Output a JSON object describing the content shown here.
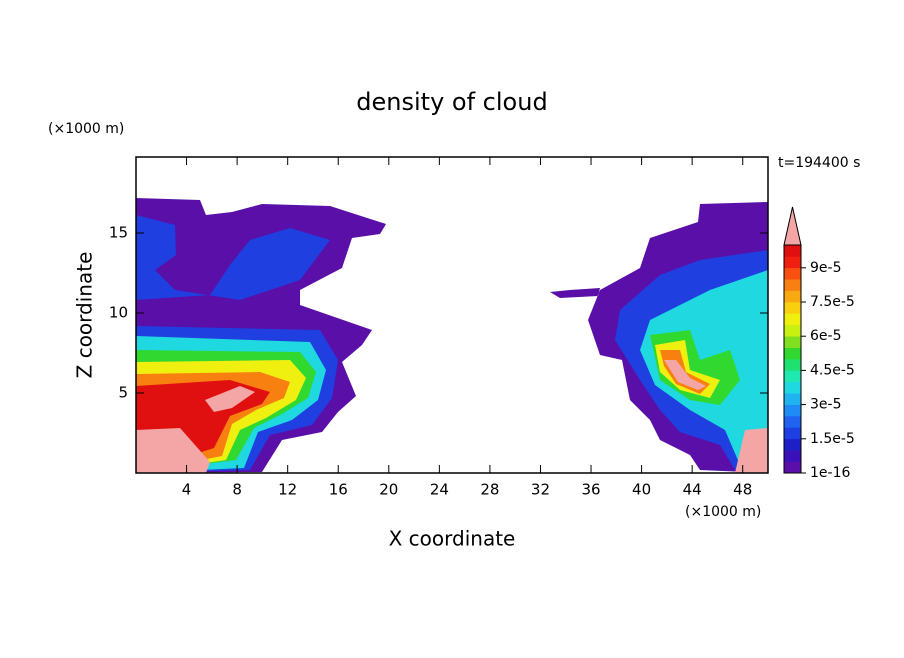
{
  "chart_data": {
    "type": "contour",
    "title": "density of cloud",
    "x_label": "X coordinate",
    "y_label": "Z coordinate",
    "x_unit": "(×1000 m)",
    "y_unit": "(×1000 m)",
    "annotation": "t=194400 s",
    "xlim": [
      0,
      50
    ],
    "ylim": [
      0,
      19.75
    ],
    "xticks": [
      4,
      8,
      12,
      16,
      20,
      24,
      28,
      32,
      36,
      40,
      44,
      48
    ],
    "yticks": [
      5,
      10,
      15
    ],
    "colorbar": {
      "clim": [
        0,
        0.0001
      ],
      "ticks": [
        {
          "value": 1e-16,
          "label": "1e-16"
        },
        {
          "value": 1.5e-05,
          "label": "1.5e-5"
        },
        {
          "value": 3e-05,
          "label": "3e-5"
        },
        {
          "value": 4.5e-05,
          "label": "4.5e-5"
        },
        {
          "value": 6e-05,
          "label": "6e-5"
        },
        {
          "value": 7.5e-05,
          "label": "7.5e-5"
        },
        {
          "value": 9e-05,
          "label": "9e-5"
        }
      ],
      "colors": [
        "#5a0fa8",
        "#3a10b8",
        "#1f1fc8",
        "#1f3fe0",
        "#1f63f0",
        "#1f8cf5",
        "#1fb4f0",
        "#1fd8e0",
        "#1fe8b0",
        "#1fe070",
        "#30d830",
        "#80e020",
        "#c8f010",
        "#f0f010",
        "#f8d010",
        "#f8a810",
        "#f88010",
        "#f85010",
        "#f02010",
        "#e01010"
      ],
      "extend_color": "#f4a6a6"
    }
  }
}
